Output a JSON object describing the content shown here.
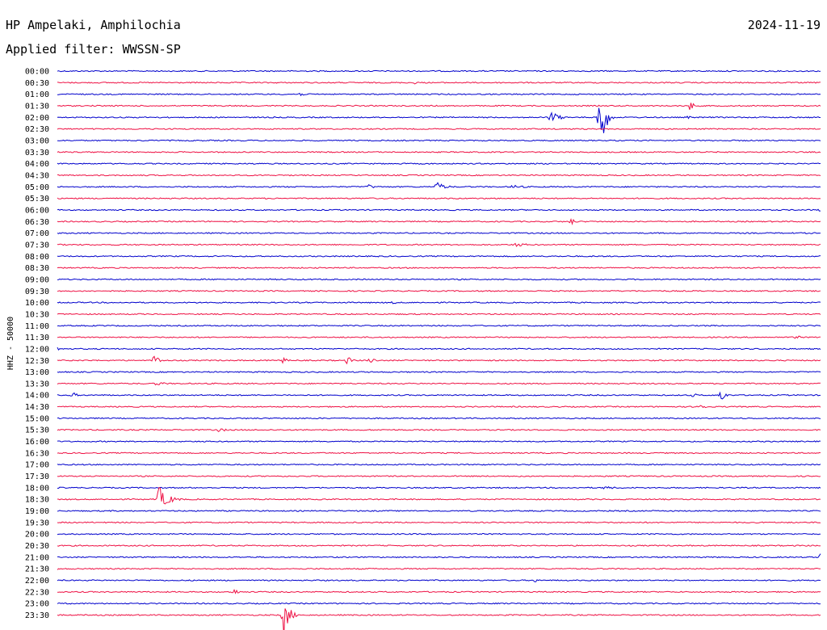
{
  "header": {
    "station": "HP Ampelaki, Amphilochia",
    "date": "2024-11-19",
    "filter": "Applied filter: WWSSN-SP"
  },
  "chart_data": {
    "type": "line",
    "subtype": "helicorder",
    "title": "HP Ampelaki, Amphilochia",
    "subtitle": "Applied filter: WWSSN-SP",
    "date": "2024-11-19",
    "ylabel": "HHZ - 50000",
    "xlabel": "",
    "row_labels": [
      "00:00",
      "00:30",
      "01:00",
      "01:30",
      "02:00",
      "02:30",
      "03:00",
      "03:30",
      "04:00",
      "04:30",
      "05:00",
      "05:30",
      "06:00",
      "06:30",
      "07:00",
      "07:30",
      "08:00",
      "08:30",
      "09:00",
      "09:30",
      "10:00",
      "10:30",
      "11:00",
      "11:30",
      "12:00",
      "12:30",
      "13:00",
      "13:30",
      "14:00",
      "14:30",
      "15:00",
      "15:30",
      "16:00",
      "16:30",
      "17:00",
      "17:30",
      "18:00",
      "18:30",
      "19:00",
      "19:30",
      "20:00",
      "20:30",
      "21:00",
      "21:30",
      "22:00",
      "22:30",
      "23:00",
      "23:30"
    ],
    "trace_colors": [
      "#0000cc",
      "#ee1144"
    ],
    "x_range_minutes": [
      0,
      30
    ],
    "events": [
      {
        "row": 1,
        "t": 14.0,
        "amp": 2,
        "dur": 0.8
      },
      {
        "row": 2,
        "t": 9.5,
        "amp": 3,
        "dur": 0.6
      },
      {
        "row": 3,
        "t": 24.9,
        "amp": 8,
        "dur": 0.3
      },
      {
        "row": 4,
        "t": 19.4,
        "amp": 9,
        "dur": 0.8
      },
      {
        "row": 4,
        "t": 21.3,
        "amp": 50,
        "dur": 0.6
      },
      {
        "row": 4,
        "t": 24.8,
        "amp": 2,
        "dur": 0.4
      },
      {
        "row": 10,
        "t": 12.2,
        "amp": 3,
        "dur": 1.0
      },
      {
        "row": 10,
        "t": 14.9,
        "amp": 6,
        "dur": 1.0
      },
      {
        "row": 10,
        "t": 17.9,
        "amp": 3,
        "dur": 1.2
      },
      {
        "row": 12,
        "t": 30.0,
        "amp": 4,
        "dur": 0.6
      },
      {
        "row": 13,
        "t": 20.2,
        "amp": 5,
        "dur": 0.4
      },
      {
        "row": 15,
        "t": 18.0,
        "amp": 3,
        "dur": 1.2
      },
      {
        "row": 20,
        "t": 13.2,
        "amp": 2,
        "dur": 0.6
      },
      {
        "row": 23,
        "t": 29.0,
        "amp": 2,
        "dur": 1.2
      },
      {
        "row": 24,
        "t": 0.0,
        "amp": 3,
        "dur": 0.7
      },
      {
        "row": 25,
        "t": 3.8,
        "amp": 7,
        "dur": 0.7
      },
      {
        "row": 25,
        "t": 8.8,
        "amp": 5,
        "dur": 0.6
      },
      {
        "row": 25,
        "t": 11.4,
        "amp": 5,
        "dur": 0.6
      },
      {
        "row": 25,
        "t": 12.3,
        "amp": 5,
        "dur": 0.5
      },
      {
        "row": 27,
        "t": 3.9,
        "amp": 3,
        "dur": 1.0
      },
      {
        "row": 28,
        "t": 0.6,
        "amp": 4,
        "dur": 0.5
      },
      {
        "row": 28,
        "t": 25.0,
        "amp": 3,
        "dur": 0.5
      },
      {
        "row": 28,
        "t": 26.1,
        "amp": 14,
        "dur": 0.3
      },
      {
        "row": 29,
        "t": 25.2,
        "amp": 7,
        "dur": 0.5
      },
      {
        "row": 31,
        "t": 6.4,
        "amp": 5,
        "dur": 0.4
      },
      {
        "row": 36,
        "t": 21.5,
        "amp": 2,
        "dur": 1.8
      },
      {
        "row": 37,
        "t": 4.0,
        "amp": 16,
        "dur": 1.0
      },
      {
        "row": 42,
        "t": 30.0,
        "amp": 5,
        "dur": 0.4
      },
      {
        "row": 43,
        "t": 0.0,
        "amp": 3,
        "dur": 0.4
      },
      {
        "row": 44,
        "t": 18.8,
        "amp": 3,
        "dur": 0.4
      },
      {
        "row": 45,
        "t": 6.9,
        "amp": 5,
        "dur": 0.6
      },
      {
        "row": 47,
        "t": 8.9,
        "amp": 27,
        "dur": 0.6
      }
    ]
  }
}
